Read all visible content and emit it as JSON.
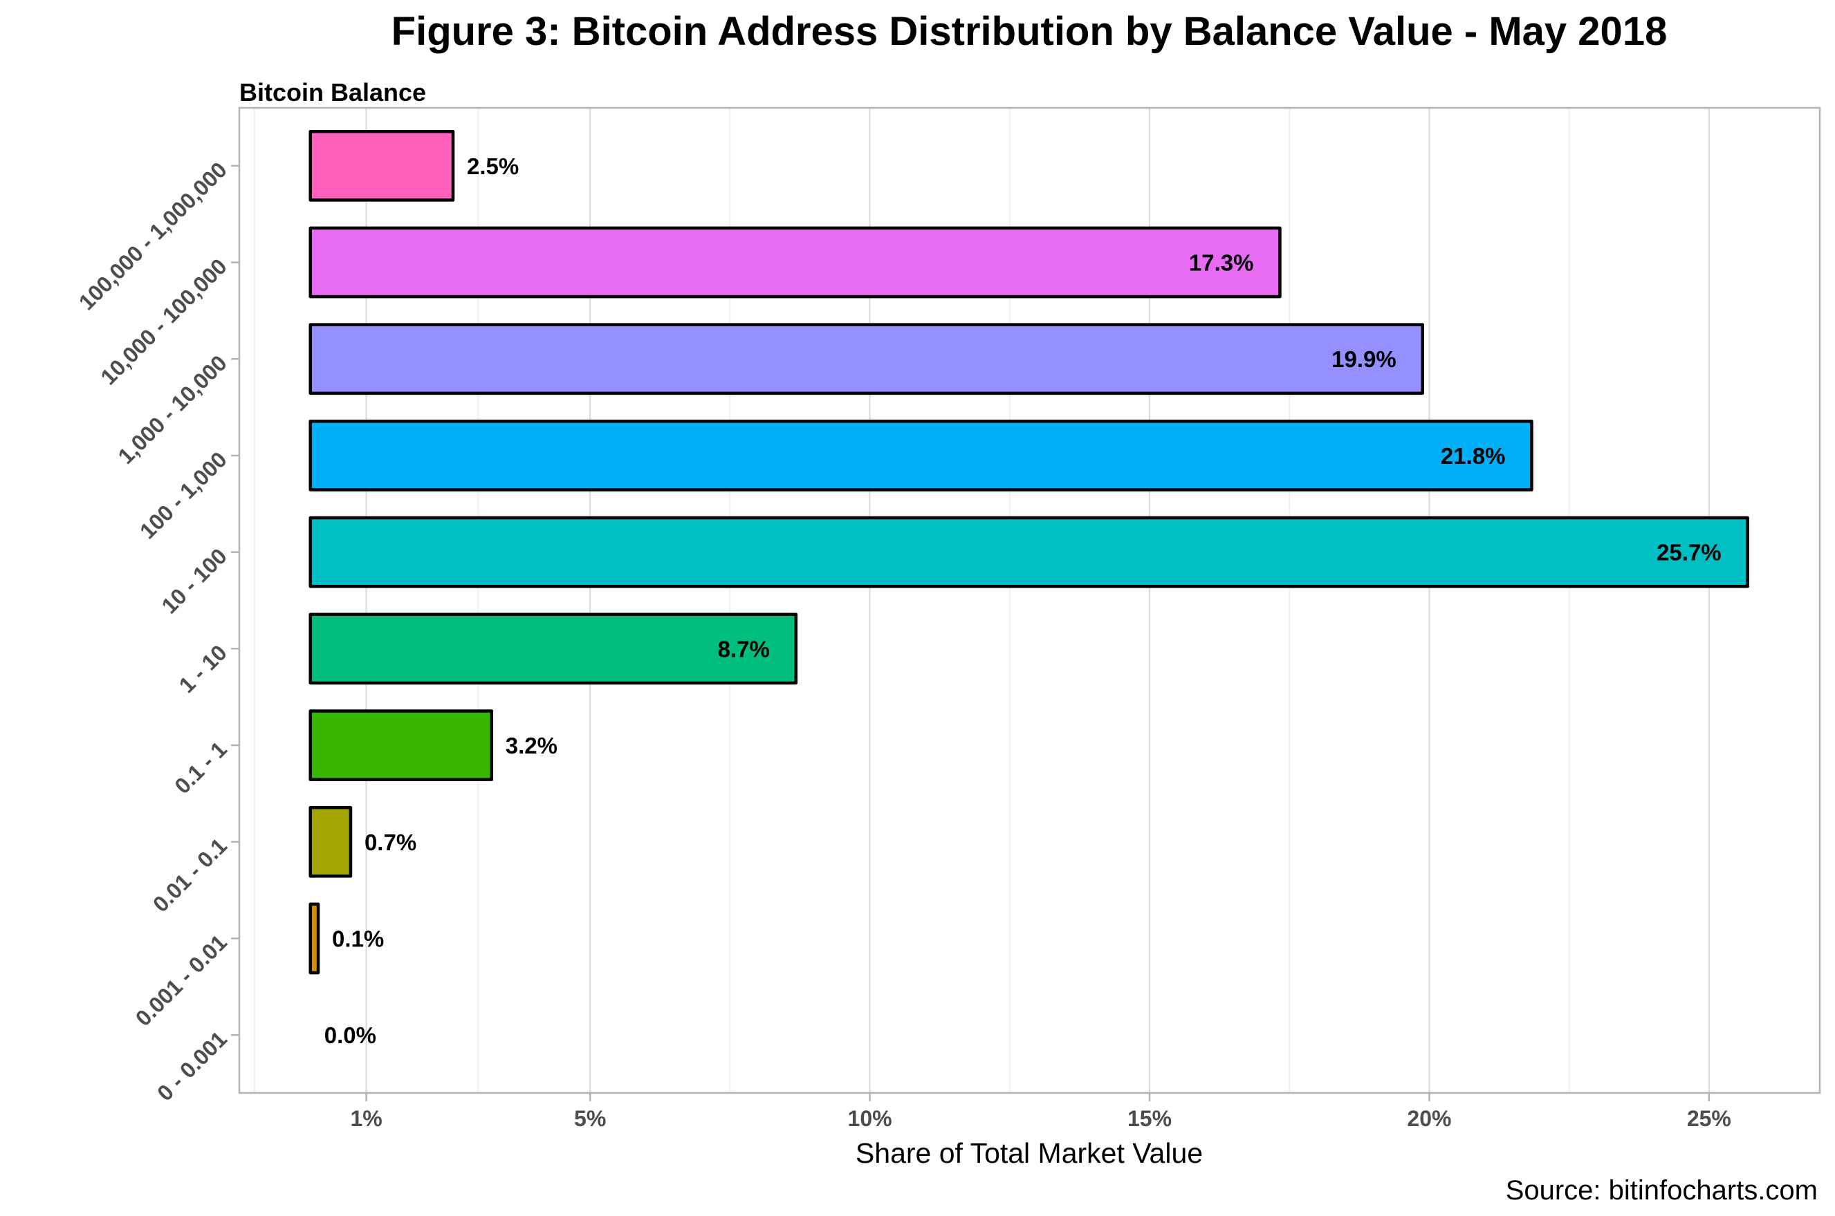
{
  "chart_data": {
    "type": "bar",
    "orientation": "horizontal",
    "title": "Figure 3: Bitcoin Address Distribution by Balance Value - May 2018",
    "subtitle": "Bitcoin Balance",
    "xlabel": "Share of Total Market Value",
    "ylabel": "Bitcoin Balance",
    "caption": "Source: bitinfocharts.com",
    "xlim": [
      -1.27,
      26.98
    ],
    "x_major_ticks": [
      1,
      5,
      10,
      15,
      20,
      25
    ],
    "x_tick_labels": [
      "1%",
      "5%",
      "10%",
      "15%",
      "20%",
      "25%"
    ],
    "x_minor_ticks": [
      -1,
      3,
      7.5,
      12.5,
      17.5,
      22.5
    ],
    "grid": true,
    "legend": "none",
    "categories": [
      "0 - 0.001",
      "0.001 - 0.01",
      "0.01 - 0.1",
      "0.1 - 1",
      "1 - 10",
      "10 - 100",
      "100 - 1,000",
      "1,000 - 10,000",
      "10,000 - 100,000",
      "100,000 - 1,000,000"
    ],
    "values": [
      0.0,
      0.14,
      0.72,
      3.24,
      8.68,
      25.69,
      21.83,
      19.88,
      17.33,
      2.55
    ],
    "data_labels": [
      "0.0%",
      "0.1%",
      "0.7%",
      "3.2%",
      "8.7%",
      "25.7%",
      "21.8%",
      "19.9%",
      "17.3%",
      "2.5%"
    ],
    "label_inside": [
      false,
      false,
      false,
      false,
      true,
      true,
      true,
      true,
      true,
      false
    ],
    "colors": [
      "#F8766D",
      "#D89000",
      "#A3A500",
      "#39B600",
      "#00BF7D",
      "#00BFC4",
      "#00B0F6",
      "#9590FF",
      "#E76BF3",
      "#FF62BC"
    ],
    "bar_outline_color": "#000000"
  }
}
